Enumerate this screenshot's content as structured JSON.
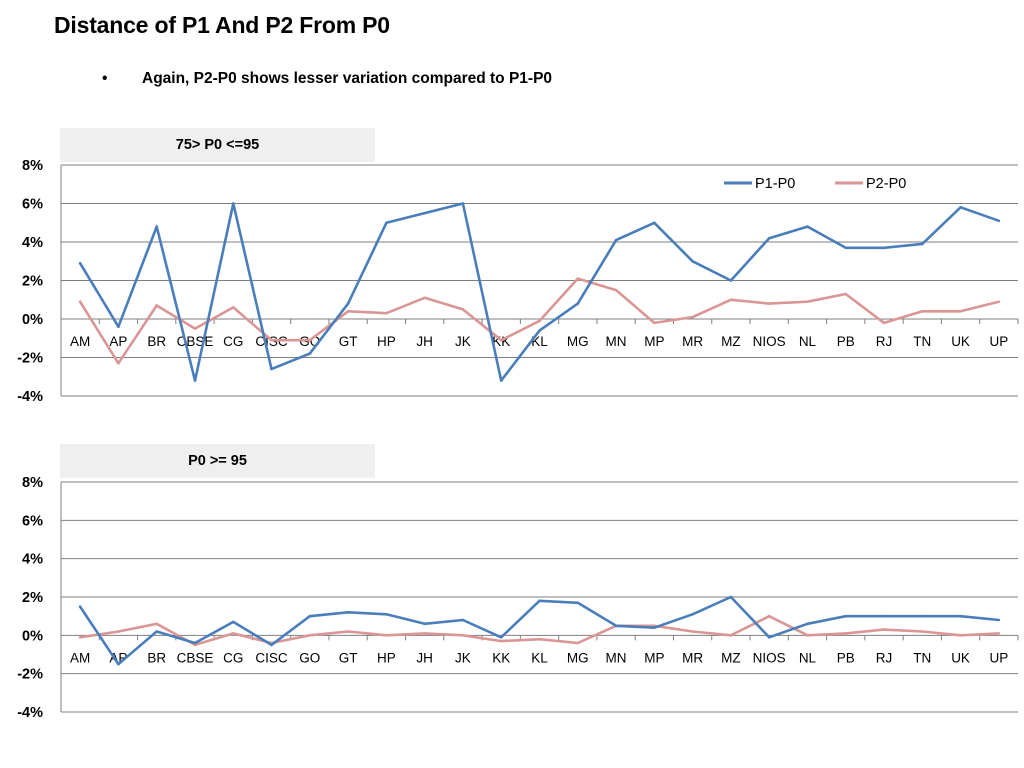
{
  "title": "Distance of P1 And P2 From  P0",
  "bullet": {
    "symbol": "•",
    "text": "Again, P2-P0 shows lesser variation compared to P1-P0"
  },
  "colors": {
    "p1": "#4a7ebb",
    "p2": "#d99694",
    "grid": "#7f7f7f",
    "label_bg": "#efefef"
  },
  "chart_data": [
    {
      "type": "line",
      "title": "75> P0 <=95",
      "categories": [
        "AM",
        "AP",
        "BR",
        "CBSE",
        "CG",
        "CISC",
        "GO",
        "GT",
        "HP",
        "JH",
        "JK",
        "KK",
        "KL",
        "MG",
        "MN",
        "MP",
        "MR",
        "MZ",
        "NIOS",
        "NL",
        "PB",
        "RJ",
        "TN",
        "UK",
        "UP"
      ],
      "ylim": [
        -4,
        8
      ],
      "yticks": [
        "-4%",
        "-2%",
        "0%",
        "2%",
        "4%",
        "6%",
        "8%"
      ],
      "legend": "top-right",
      "series": [
        {
          "name": "P1-P0",
          "values": [
            2.9,
            -0.4,
            4.8,
            -3.2,
            6.0,
            -2.6,
            -1.8,
            0.8,
            5.0,
            5.5,
            6.0,
            -3.2,
            -0.6,
            0.8,
            4.1,
            5.0,
            3.0,
            2.0,
            4.2,
            4.8,
            3.7,
            3.7,
            3.9,
            5.8,
            5.1
          ]
        },
        {
          "name": "P2-P0",
          "values": [
            0.9,
            -2.3,
            0.7,
            -0.5,
            0.6,
            -1.1,
            -1.1,
            0.4,
            0.3,
            1.1,
            0.5,
            -1.1,
            -0.1,
            2.1,
            1.5,
            -0.2,
            0.1,
            1.0,
            0.8,
            0.9,
            1.3,
            -0.2,
            0.4,
            0.4,
            0.9
          ]
        }
      ]
    },
    {
      "type": "line",
      "title": "P0 >= 95",
      "categories": [
        "AM",
        "AP",
        "BR",
        "CBSE",
        "CG",
        "CISC",
        "GO",
        "GT",
        "HP",
        "JH",
        "JK",
        "KK",
        "KL",
        "MG",
        "MN",
        "MP",
        "MR",
        "MZ",
        "NIOS",
        "NL",
        "PB",
        "RJ",
        "TN",
        "UK",
        "UP"
      ],
      "ylim": [
        -4,
        8
      ],
      "yticks": [
        "-4%",
        "-2%",
        "0%",
        "2%",
        "4%",
        "6%",
        "8%"
      ],
      "legend": "none",
      "series": [
        {
          "name": "P1-P0",
          "values": [
            1.5,
            -1.5,
            0.2,
            -0.4,
            0.7,
            -0.5,
            1.0,
            1.2,
            1.1,
            0.6,
            0.8,
            -0.1,
            1.8,
            1.7,
            0.5,
            0.4,
            1.1,
            2.0,
            -0.1,
            0.6,
            1.0,
            1.0,
            1.0,
            1.0,
            0.8
          ]
        },
        {
          "name": "P2-P0",
          "values": [
            -0.1,
            0.2,
            0.6,
            -0.5,
            0.1,
            -0.4,
            0.0,
            0.2,
            0.0,
            0.1,
            0.0,
            -0.3,
            -0.2,
            -0.4,
            0.5,
            0.5,
            0.2,
            0.0,
            1.0,
            0.0,
            0.1,
            0.3,
            0.2,
            0.0,
            0.1
          ]
        }
      ]
    }
  ]
}
